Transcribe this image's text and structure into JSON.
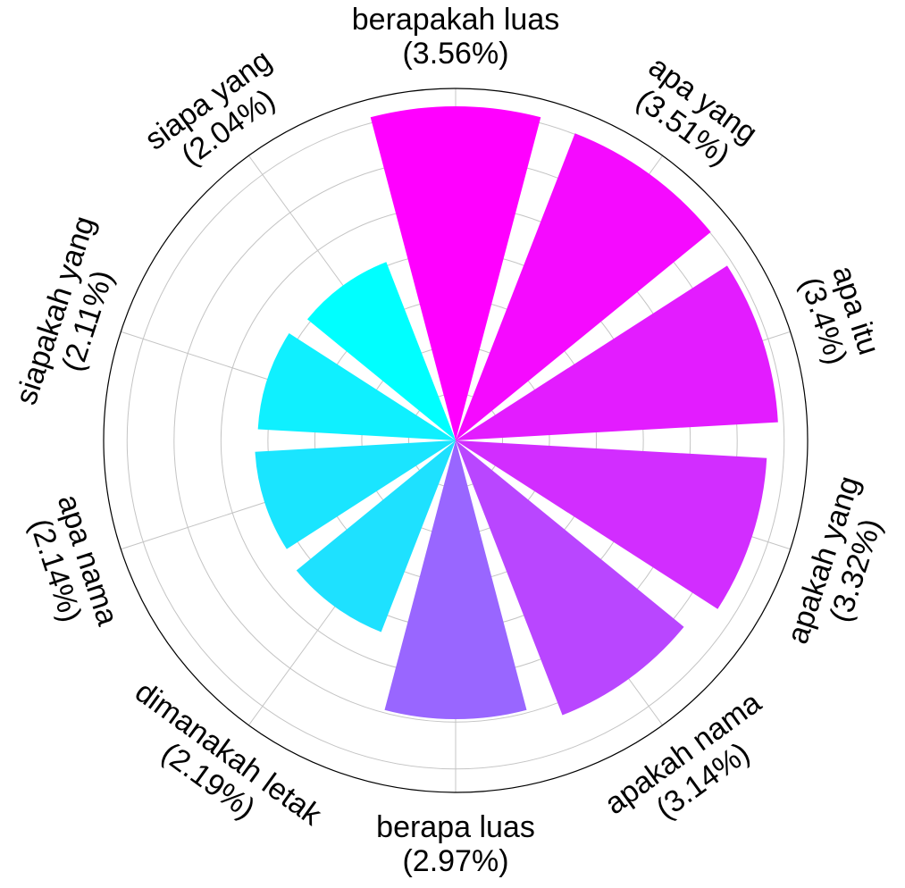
{
  "chart_data": {
    "type": "bar",
    "polar": true,
    "grid": true,
    "categories": [
      "berapakah luas",
      "apa yang",
      "apa itu",
      "apakah yang",
      "apakah nama",
      "berapa luas",
      "dimanakah letak",
      "apa nama",
      "siapakah yang",
      "siapa yang"
    ],
    "values": [
      3.56,
      3.51,
      3.44,
      3.32,
      3.14,
      2.97,
      2.19,
      2.14,
      2.11,
      2.04
    ],
    "value_labels": [
      "(3.56%)",
      "(3.51%)",
      "(3.4%)",
      "(3.32%)",
      "(3.14%)",
      "(2.97%)",
      "(2.19%)",
      "(2.14%)",
      "(2.11%)",
      "(2.04%)"
    ],
    "colors": [
      "#ff00ff",
      "#f50aff",
      "#e31cff",
      "#d22dff",
      "#b946ff",
      "#9966ff",
      "#1ee1ff",
      "#1ae5ff",
      "#0ff0ff",
      "#00ffff"
    ],
    "rlim": [
      0,
      3.75
    ],
    "title": ""
  }
}
